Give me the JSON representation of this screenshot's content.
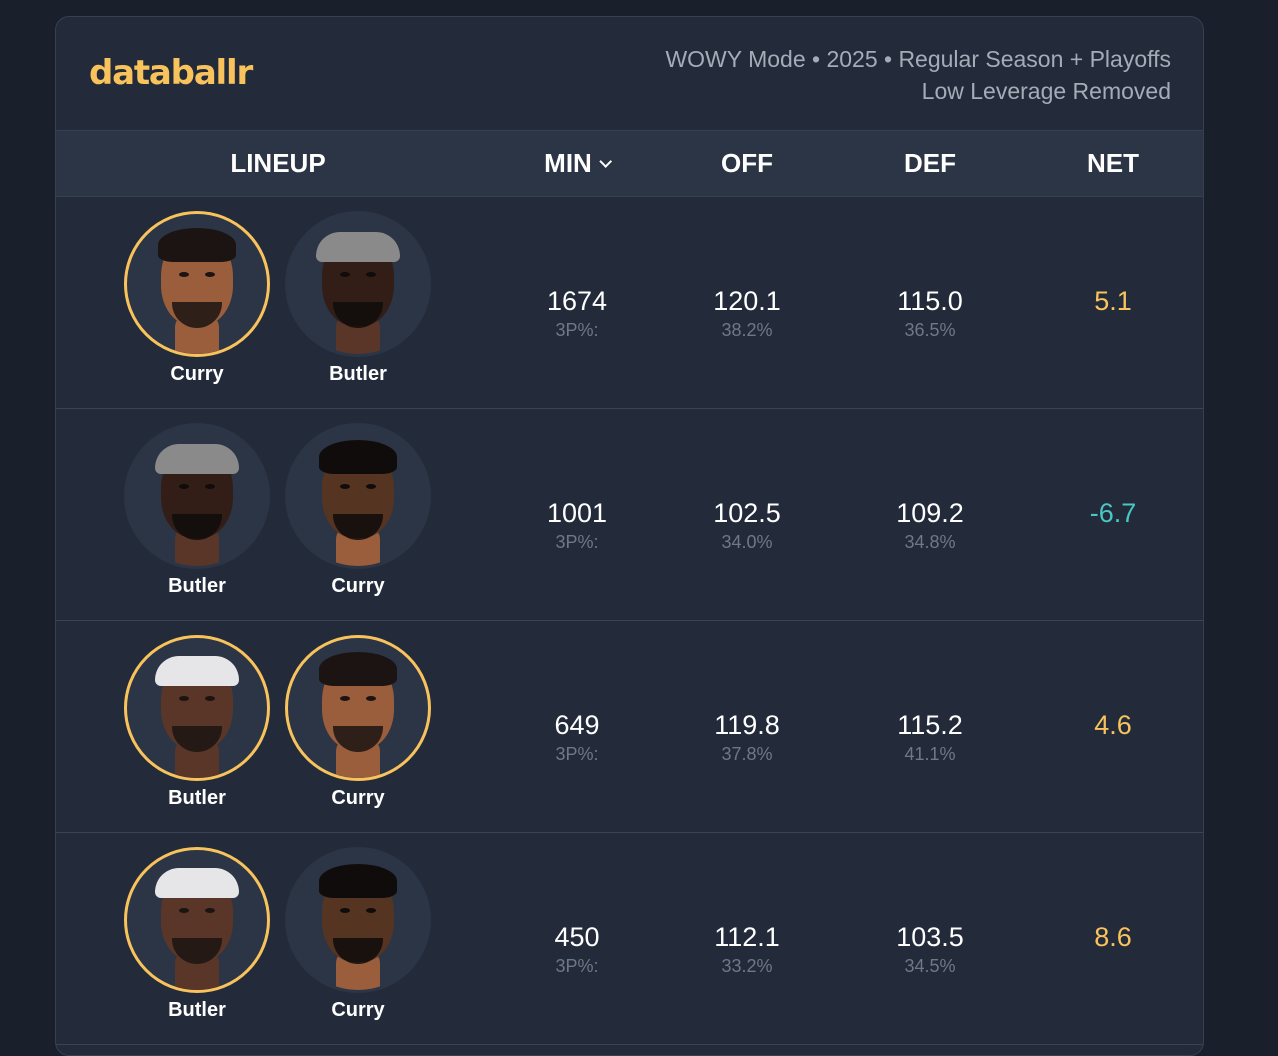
{
  "brand": "databallr",
  "meta": {
    "line1": "WOWY Mode • 2025 • Regular Season + Playoffs",
    "line2": "Low Leverage Removed"
  },
  "columns": {
    "lineup": "LINEUP",
    "min": "MIN",
    "off": "OFF",
    "def": "DEF",
    "net": "NET"
  },
  "colors": {
    "accent": "#f8c35c",
    "negative": "#48c7c4",
    "background": "#232b3a"
  },
  "rows": [
    {
      "players": [
        {
          "name": "Curry",
          "highlighted": true
        },
        {
          "name": "Butler",
          "highlighted": false
        }
      ],
      "min": "1674",
      "min_sub": "3P%:",
      "off": "120.1",
      "off_sub": "38.2%",
      "def": "115.0",
      "def_sub": "36.5%",
      "net": "5.1"
    },
    {
      "players": [
        {
          "name": "Butler",
          "highlighted": false
        },
        {
          "name": "Curry",
          "highlighted": false
        }
      ],
      "min": "1001",
      "min_sub": "3P%:",
      "off": "102.5",
      "off_sub": "34.0%",
      "def": "109.2",
      "def_sub": "34.8%",
      "net": "-6.7"
    },
    {
      "players": [
        {
          "name": "Butler",
          "highlighted": true
        },
        {
          "name": "Curry",
          "highlighted": true
        }
      ],
      "min": "649",
      "min_sub": "3P%:",
      "off": "119.8",
      "off_sub": "37.8%",
      "def": "115.2",
      "def_sub": "41.1%",
      "net": "4.6"
    },
    {
      "players": [
        {
          "name": "Butler",
          "highlighted": true
        },
        {
          "name": "Curry",
          "highlighted": false
        }
      ],
      "min": "450",
      "min_sub": "3P%:",
      "off": "112.1",
      "off_sub": "33.2%",
      "def": "103.5",
      "def_sub": "34.5%",
      "net": "8.6"
    }
  ]
}
